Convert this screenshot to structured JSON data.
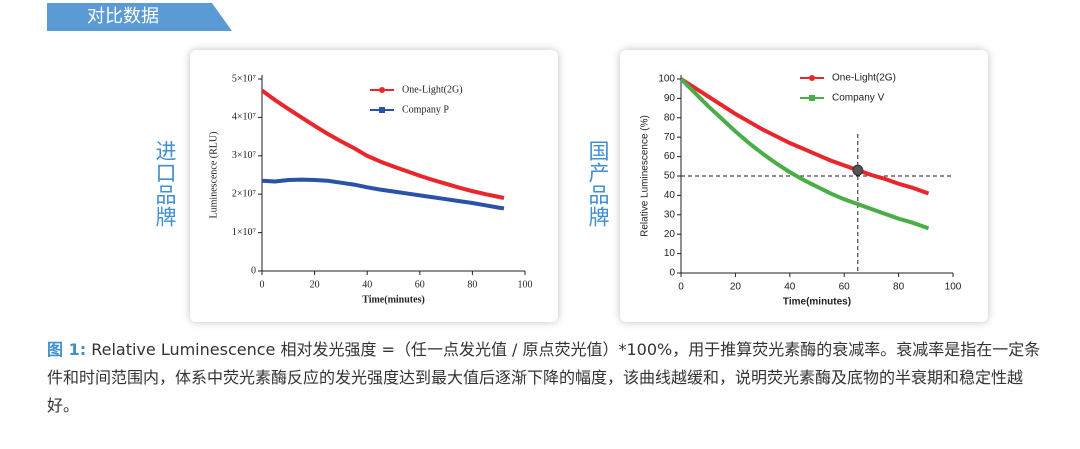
{
  "header": {
    "title": "对比数据"
  },
  "side_labels": [
    "进口品牌",
    "国产品牌"
  ],
  "caption": {
    "label": "图 1:",
    "text": "Relative Luminescence 相对发光强度 =（任一点发光值 / 原点荧光值）*100%，用于推算荧光素酶的衰减率。衰减率是指在一定条件和时间范围内，体系中荧光素酶反应的发光强度达到最大值后逐渐下降的幅度，该曲线越缓和，说明荧光素酶及底物的半衰期和稳定性越好。"
  },
  "chart_data": [
    {
      "type": "line",
      "x_label": "Time(minutes)",
      "y_label": "Luminescence (RLU)",
      "xlim": [
        0,
        100
      ],
      "xticks": [
        0,
        20,
        40,
        60,
        80,
        100
      ],
      "ylim": [
        0,
        50000000
      ],
      "yticks": [
        0,
        {
          "value": 10000000,
          "label": "1×10⁷"
        },
        {
          "value": 20000000,
          "label": "2×10⁷"
        },
        {
          "value": 30000000,
          "label": "3×10⁷"
        },
        {
          "value": 40000000,
          "label": "4×10⁷"
        },
        {
          "value": 50000000,
          "label": "5×10⁷"
        }
      ],
      "x": [
        0,
        5,
        10,
        15,
        20,
        25,
        30,
        35,
        40,
        45,
        50,
        55,
        60,
        65,
        70,
        75,
        80,
        85,
        90,
        92
      ],
      "series": [
        {
          "name": "One-Light(2G)",
          "color": "#e8262b",
          "marker": "circle",
          "values": [
            47000000,
            44500000,
            42200000,
            40000000,
            37800000,
            35700000,
            33800000,
            32000000,
            30000000,
            28500000,
            27200000,
            26000000,
            24800000,
            23700000,
            22700000,
            21700000,
            20800000,
            20000000,
            19300000,
            19000000
          ]
        },
        {
          "name": "Company P",
          "color": "#2a52a8",
          "marker": "square",
          "values": [
            23500000,
            23300000,
            23700000,
            23800000,
            23700000,
            23500000,
            23000000,
            22500000,
            21800000,
            21200000,
            20700000,
            20200000,
            19700000,
            19200000,
            18700000,
            18200000,
            17700000,
            17100000,
            16500000,
            16300000
          ]
        }
      ]
    },
    {
      "type": "line",
      "x_label": "Time(minutes)",
      "y_label": "Relative Luminescence (%)",
      "xlim": [
        0,
        100
      ],
      "xticks": [
        0,
        20,
        40,
        60,
        80,
        100
      ],
      "ylim": [
        0,
        100
      ],
      "yticks": [
        0,
        10,
        20,
        30,
        40,
        50,
        60,
        70,
        80,
        90,
        100
      ],
      "x": [
        0,
        5,
        10,
        15,
        20,
        25,
        30,
        35,
        40,
        45,
        50,
        55,
        60,
        65,
        70,
        75,
        80,
        85,
        90,
        91
      ],
      "series": [
        {
          "name": "One-Light(2G)",
          "color": "#e8262b",
          "marker": "circle",
          "values": [
            100,
            95.5,
            91,
            86.5,
            82,
            78,
            74,
            70.5,
            67,
            64,
            61,
            58,
            55.5,
            53,
            50.5,
            48.5,
            46,
            44,
            41.5,
            41
          ]
        },
        {
          "name": "Company V",
          "color": "#4aae48",
          "marker": "square",
          "values": [
            100,
            93,
            86,
            79.5,
            73,
            67,
            61.5,
            56.5,
            52,
            48,
            44.5,
            41,
            38,
            35.5,
            33,
            30.5,
            28,
            26,
            23.5,
            23
          ]
        }
      ],
      "reference_lines": {
        "x": 65,
        "y": 50
      },
      "highlight_point": {
        "x": 65,
        "y": 53
      }
    }
  ]
}
